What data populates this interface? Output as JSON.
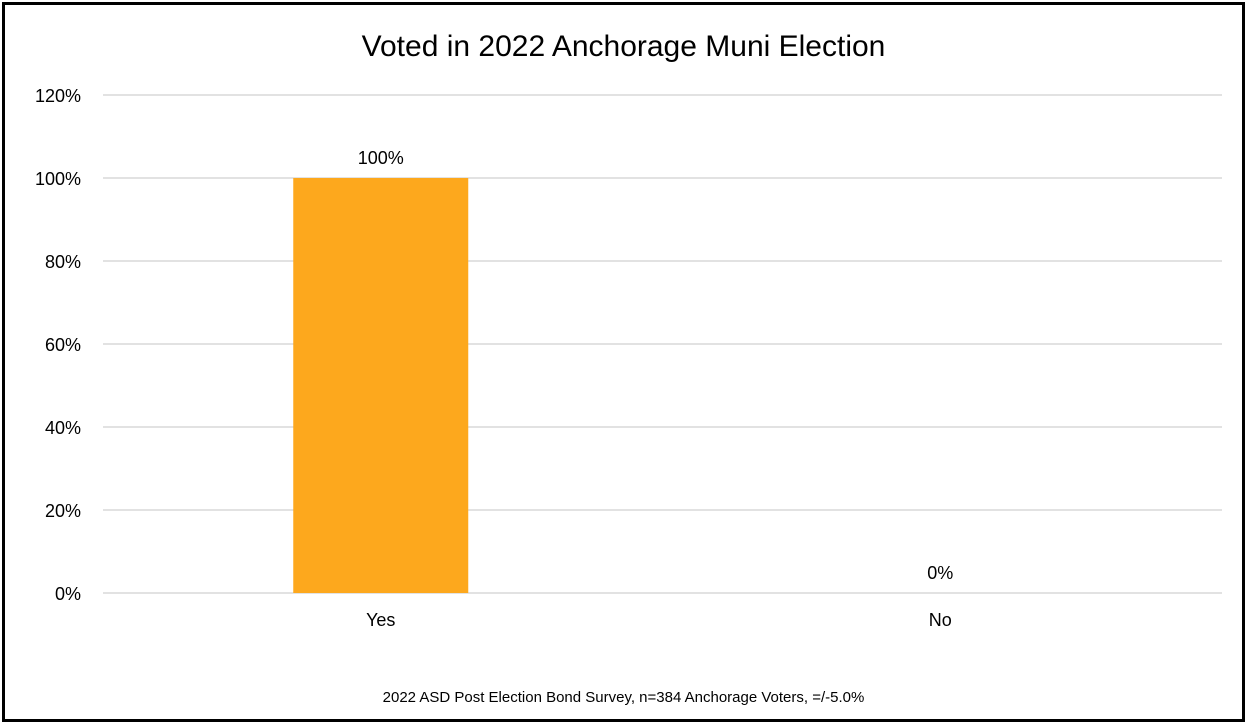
{
  "chart_data": {
    "type": "bar",
    "title": "Voted in 2022 Anchorage Muni Election",
    "footnote": "2022 ASD Post Election Bond Survey, n=384 Anchorage Voters, =/-5.0%",
    "categories": [
      "Yes",
      "No"
    ],
    "values": [
      100,
      0
    ],
    "data_labels": [
      "100%",
      "0%"
    ],
    "y_ticks": [
      0,
      20,
      40,
      60,
      80,
      100,
      120
    ],
    "y_tick_labels": [
      "0%",
      "20%",
      "40%",
      "60%",
      "80%",
      "100%",
      "120%"
    ],
    "ylim": [
      0,
      120
    ],
    "grid": true,
    "legend": "none",
    "bar_color": "#FDA81D",
    "gridline_color": "#D9D9D9"
  }
}
